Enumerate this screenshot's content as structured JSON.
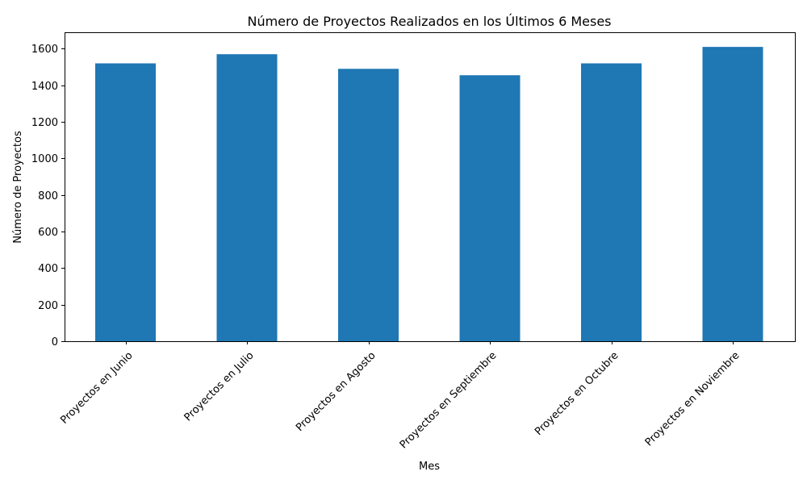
{
  "chart_data": {
    "type": "bar",
    "title": "Número de Proyectos Realizados en los Últimos 6 Meses",
    "xlabel": "Mes",
    "ylabel": "Número de Proyectos",
    "categories": [
      "Proyectos en Junio",
      "Proyectos en Julio",
      "Proyectos en Agosto",
      "Proyectos en Septiembre",
      "Proyectos en Octubre",
      "Proyectos en Noviembre"
    ],
    "values": [
      1520,
      1570,
      1490,
      1455,
      1520,
      1610
    ],
    "ylim": [
      0,
      1690
    ],
    "yticks": [
      0,
      200,
      400,
      600,
      800,
      1000,
      1200,
      1400,
      1600
    ],
    "grid": false,
    "legend": false,
    "bar_color": "#1f77b4"
  }
}
